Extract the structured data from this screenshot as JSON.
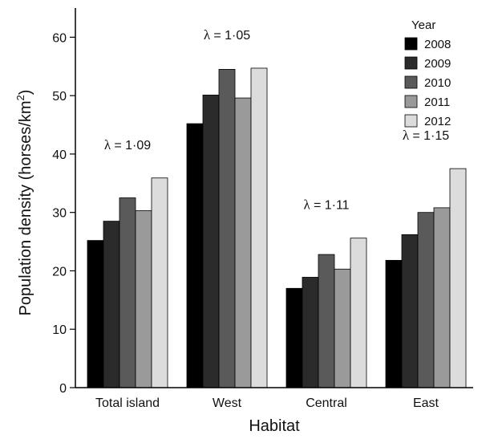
{
  "chart_data": {
    "type": "bar",
    "xlabel": "Habitat",
    "ylabel": "Population density (horses/km",
    "ylabel_superscript": "2",
    "ylabel_close": ")",
    "ylim": [
      0,
      65
    ],
    "yticks": [
      0,
      10,
      20,
      30,
      40,
      50,
      60
    ],
    "categories": [
      "Total island",
      "West",
      "Central",
      "East"
    ],
    "legend_title": "Year",
    "legend_position": "top-right",
    "series": [
      {
        "name": "2008",
        "color": "#000000",
        "values": [
          25.2,
          45.2,
          17.0,
          21.8
        ]
      },
      {
        "name": "2009",
        "color": "#2b2b2b",
        "values": [
          28.5,
          50.1,
          18.9,
          26.2
        ]
      },
      {
        "name": "2010",
        "color": "#5a5a5a",
        "values": [
          32.5,
          54.5,
          22.8,
          30.0
        ]
      },
      {
        "name": "2011",
        "color": "#9a9a9a",
        "values": [
          30.3,
          49.6,
          20.3,
          30.8
        ]
      },
      {
        "name": "2012",
        "color": "#dcdcdc",
        "values": [
          35.9,
          54.7,
          25.6,
          37.5
        ]
      }
    ],
    "annotations": [
      {
        "category": "Total island",
        "symbol": "λ",
        "text": "= 1·09"
      },
      {
        "category": "West",
        "symbol": "λ",
        "text": "= 1·05"
      },
      {
        "category": "Central",
        "symbol": "λ",
        "text": "= 1·11"
      },
      {
        "category": "East",
        "symbol": "λ",
        "text": "= 1·15"
      }
    ]
  }
}
